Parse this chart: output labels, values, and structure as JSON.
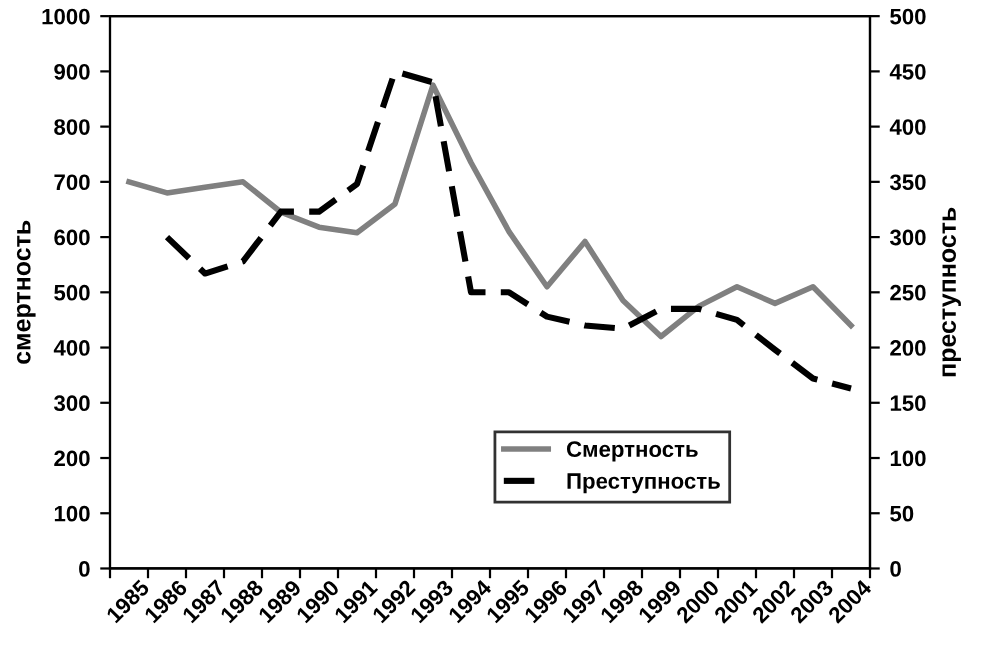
{
  "chart_data": {
    "type": "line",
    "ylabel": "смертность",
    "y2label": "преступность",
    "categories": [
      "1985",
      "1986",
      "1987",
      "1988",
      "1989",
      "1990",
      "1991",
      "1992",
      "1993",
      "1994",
      "1995",
      "1996",
      "1997",
      "1998",
      "1999",
      "2000",
      "2001",
      "2002",
      "2003",
      "2004"
    ],
    "series": [
      {
        "name": "Смертность",
        "color": "#808080",
        "line_style": "solid",
        "values": [
          700,
          680,
          690,
          700,
          645,
          618,
          608,
          660,
          875,
          735,
          610,
          510,
          592,
          485,
          420,
          475,
          510,
          480,
          510,
          440
        ]
      },
      {
        "name": "Преступность",
        "color": "#000000",
        "line_style": "dashed",
        "axis": "y2",
        "values": [
          null,
          300,
          267,
          278,
          323,
          323,
          348,
          450,
          440,
          250,
          250,
          228,
          220,
          217,
          235,
          235,
          225,
          198,
          172,
          163
        ]
      }
    ],
    "ylim": [
      0,
      1000
    ],
    "yticks": [
      0,
      100,
      200,
      300,
      400,
      500,
      600,
      700,
      800,
      900,
      1000
    ],
    "y2lim": [
      0,
      500
    ],
    "y2ticks": [
      0,
      50,
      100,
      150,
      200,
      250,
      300,
      350,
      400,
      450,
      500
    ],
    "grid": false,
    "legend": "bottom right",
    "marker": "none"
  }
}
